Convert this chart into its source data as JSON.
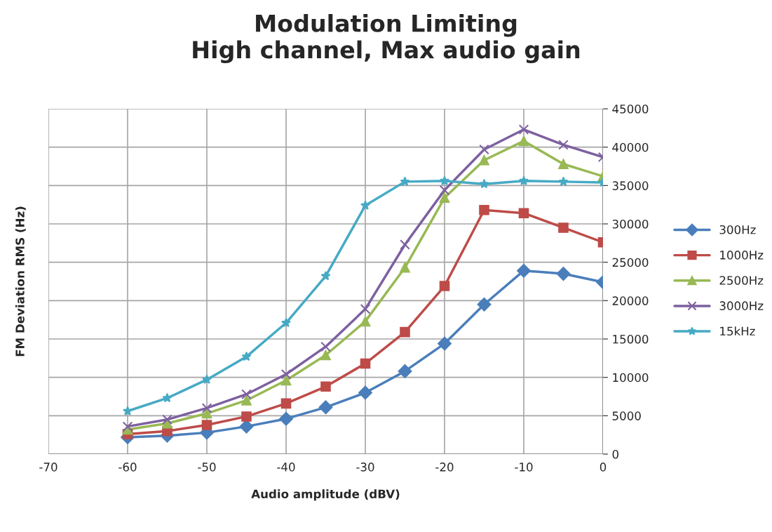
{
  "chart_data": {
    "type": "line",
    "title": "Modulation Limiting\nHigh channel, Max audio gain",
    "xlabel": "Audio amplitude (dBV)",
    "ylabel": "FM Deviation RMS (Hz)",
    "x": [
      -60,
      -55,
      -50,
      -45,
      -40,
      -35,
      -30,
      -25,
      -20,
      -15,
      -10,
      -5,
      0
    ],
    "series": [
      {
        "name": "300Hz",
        "color": "#4a7ebb",
        "marker": "diamond",
        "values": [
          2200,
          2400,
          2800,
          3600,
          4600,
          6100,
          8000,
          10800,
          14400,
          19500,
          23900,
          23500,
          22400
        ]
      },
      {
        "name": "1000Hz",
        "color": "#be4b48",
        "marker": "square",
        "values": [
          2600,
          3000,
          3800,
          4900,
          6600,
          8800,
          11800,
          15900,
          21900,
          31800,
          31400,
          29500,
          27600
        ]
      },
      {
        "name": "2500Hz",
        "color": "#98b954",
        "marker": "triangle",
        "values": [
          3200,
          4000,
          5300,
          7000,
          9600,
          12900,
          17300,
          24300,
          33400,
          38300,
          40800,
          37800,
          36200
        ]
      },
      {
        "name": "3000Hz",
        "color": "#7d60a0",
        "marker": "cross",
        "values": [
          3600,
          4500,
          6000,
          7800,
          10400,
          14000,
          18900,
          27300,
          34400,
          39700,
          42300,
          40300,
          38700
        ]
      },
      {
        "name": "15kHz",
        "color": "#46aac5",
        "marker": "star",
        "values": [
          5600,
          7300,
          9700,
          12700,
          17100,
          23200,
          32400,
          35500,
          35600,
          35200,
          35600,
          35500,
          35400
        ]
      }
    ],
    "xlim": [
      -70,
      0
    ],
    "xticks": [
      -70,
      -60,
      -50,
      -40,
      -30,
      -20,
      -10,
      0
    ],
    "ylim": [
      0,
      45000
    ],
    "yticks": [
      0,
      5000,
      10000,
      15000,
      20000,
      25000,
      30000,
      35000,
      40000,
      45000
    ],
    "grid": true,
    "legend": "right",
    "line_style": "solid"
  }
}
